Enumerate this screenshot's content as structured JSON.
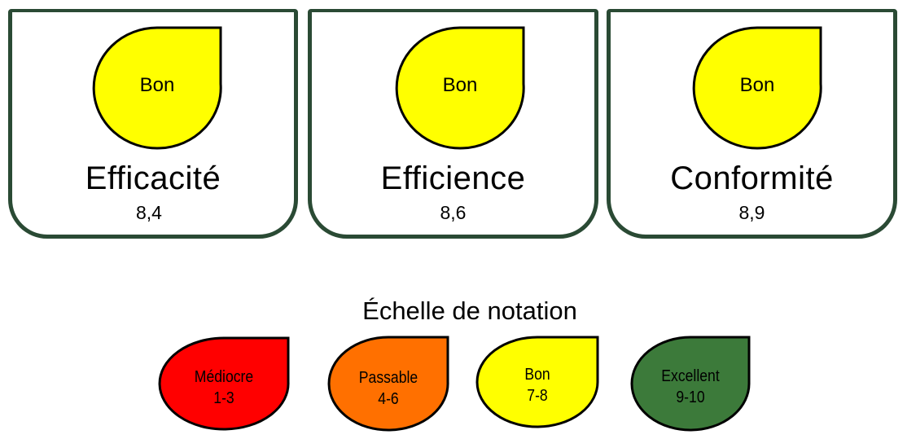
{
  "indicators": [
    {
      "rating": "Bon",
      "name": "Efficacité",
      "score": "8,4",
      "color": "#ffff00"
    },
    {
      "rating": "Bon",
      "name": "Efficience",
      "score": "8,6",
      "color": "#ffff00"
    },
    {
      "rating": "Bon",
      "name": "Conformité",
      "score": "8,9",
      "color": "#ffff00"
    }
  ],
  "scale": {
    "title": "Échelle de notation",
    "levels": [
      {
        "label": "Médiocre",
        "range": "1-3",
        "color": "#ff0000"
      },
      {
        "label": "Passable",
        "range": "4-6",
        "color": "#ff7000"
      },
      {
        "label": "Bon",
        "range": "7-8",
        "color": "#ffff00"
      },
      {
        "label": "Excellent",
        "range": "9-10",
        "color": "#3c7a3a"
      }
    ]
  },
  "colors": {
    "card_border": "#2a4a34",
    "outline": "#000000"
  }
}
